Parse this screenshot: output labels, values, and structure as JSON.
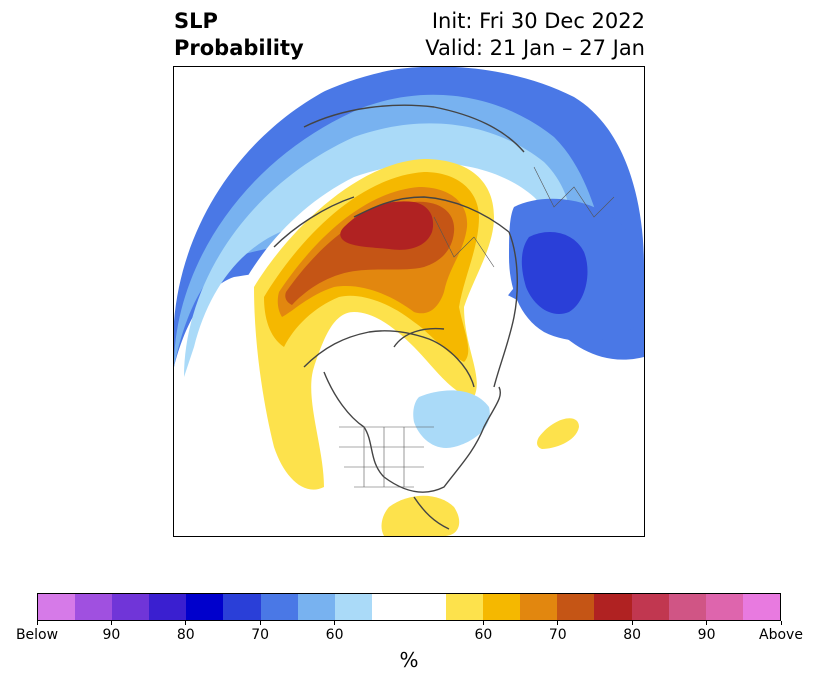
{
  "title": {
    "left_line1": "SLP",
    "left_line2": "Probability",
    "right_line1": "Init: Fri 30 Dec 2022",
    "right_line2": "Valid: 21 Jan – 27 Jan"
  },
  "colorbar": {
    "below_colors": [
      "#d67ae8",
      "#a050e0",
      "#7035d8",
      "#3a1fd0",
      "#0000cc",
      "#2a3fd8",
      "#4a78e6",
      "#78b2f0",
      "#aadaf8"
    ],
    "neutral_color": "#ffffff",
    "above_colors": [
      "#fde24c",
      "#f5b800",
      "#e2870f",
      "#c55515",
      "#b02222",
      "#c13750",
      "#d05585",
      "#de65ad",
      "#e87ae0"
    ],
    "tick_labels": [
      "Below",
      "90",
      "80",
      "70",
      "60",
      "60",
      "70",
      "80",
      "90",
      "Above"
    ],
    "unit_label": "%"
  }
}
